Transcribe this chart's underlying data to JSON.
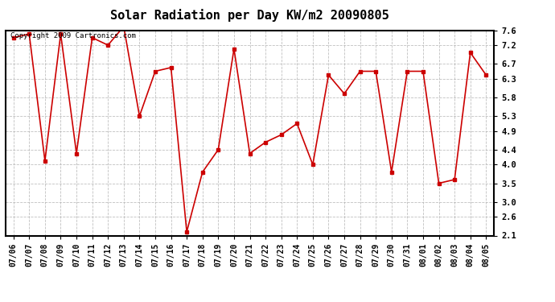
{
  "title": "Solar Radiation per Day KW/m2 20090805",
  "copyright": "Copyright 2009 Cartronics.com",
  "dates": [
    "07/06",
    "07/07",
    "07/08",
    "07/09",
    "07/10",
    "07/11",
    "07/12",
    "07/13",
    "07/14",
    "07/15",
    "07/16",
    "07/17",
    "07/18",
    "07/19",
    "07/20",
    "07/21",
    "07/22",
    "07/23",
    "07/24",
    "07/25",
    "07/26",
    "07/27",
    "07/28",
    "07/29",
    "07/30",
    "07/31",
    "08/01",
    "08/02",
    "08/03",
    "08/04",
    "08/05"
  ],
  "values": [
    7.4,
    7.5,
    4.1,
    7.5,
    4.3,
    7.4,
    7.2,
    7.7,
    5.3,
    6.5,
    6.6,
    2.2,
    3.8,
    4.4,
    7.1,
    4.3,
    4.6,
    4.8,
    5.1,
    4.0,
    6.4,
    5.9,
    6.5,
    6.5,
    3.8,
    6.5,
    6.5,
    3.5,
    3.6,
    7.0,
    6.4
  ],
  "line_color": "#cc0000",
  "marker_size": 3,
  "bg_color": "#ffffff",
  "grid_color": "#b0b0b0",
  "yticks": [
    2.1,
    2.6,
    3.0,
    3.5,
    4.0,
    4.4,
    4.9,
    5.3,
    5.8,
    6.3,
    6.7,
    7.2,
    7.6
  ],
  "ymin": 2.1,
  "ymax": 7.6,
  "title_fontsize": 11,
  "copyright_fontsize": 6.5,
  "tick_fontsize": 7,
  "ytick_fontsize": 7.5
}
